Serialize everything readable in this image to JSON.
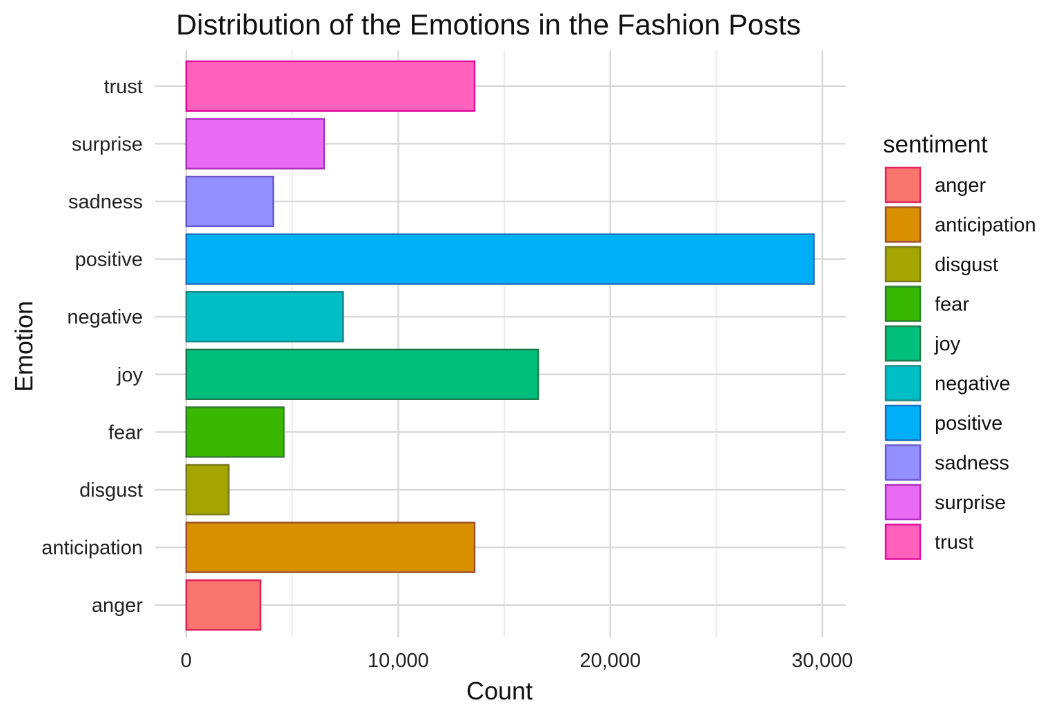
{
  "chart_data": {
    "type": "bar",
    "orientation": "horizontal",
    "title": "Distribution of the Emotions in the Fashion Posts",
    "xlabel": "Count",
    "ylabel": "Emotion",
    "xlim": [
      0,
      31000
    ],
    "x_ticks": [
      0,
      10000,
      20000,
      30000
    ],
    "x_tick_labels": [
      "0",
      "10,000",
      "20,000",
      "30,000"
    ],
    "grid": true,
    "categories": [
      "anger",
      "anticipation",
      "disgust",
      "fear",
      "joy",
      "negative",
      "positive",
      "sadness",
      "surprise",
      "trust"
    ],
    "values": [
      3500,
      13600,
      2000,
      4600,
      16600,
      7400,
      29600,
      4100,
      6500,
      13600
    ],
    "colors": [
      "#F8766D",
      "#D89000",
      "#A3A500",
      "#39B600",
      "#00BF7D",
      "#00BFC4",
      "#00B0F6",
      "#9590FF",
      "#E76BF3",
      "#FF62BC"
    ],
    "border_colors": [
      "#e0245e",
      "#a0522d",
      "#7a7a20",
      "#2f7f2f",
      "#1f7a4f",
      "#1f8a8a",
      "#1f6fbf",
      "#6a5acd",
      "#b030c0",
      "#e0109e"
    ],
    "legend": {
      "title": "sentiment",
      "position": "right",
      "entries": [
        "anger",
        "anticipation",
        "disgust",
        "fear",
        "joy",
        "negative",
        "positive",
        "sadness",
        "surprise",
        "trust"
      ]
    }
  }
}
